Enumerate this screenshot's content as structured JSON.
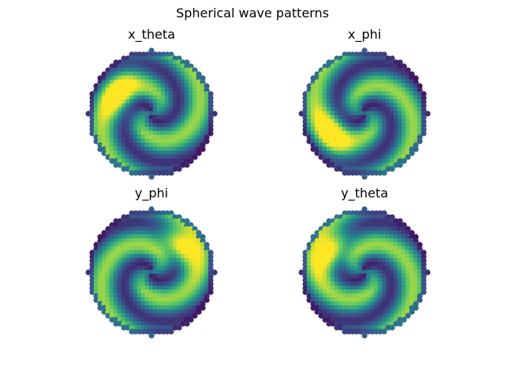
{
  "figure": {
    "suptitle": "Spherical wave patterns"
  },
  "chart_data": [
    {
      "type": "scatter",
      "title": "x_theta",
      "colormap": "viridis",
      "axes": "off",
      "grid": false,
      "bright_lobe": "upper-left",
      "colors": [
        "#440154",
        "#3b528b",
        "#21918c",
        "#5ec962",
        "#fde725"
      ]
    },
    {
      "type": "scatter",
      "title": "x_phi",
      "colormap": "viridis",
      "axes": "off",
      "grid": false,
      "bright_lobe": "lower-left",
      "colors": [
        "#440154",
        "#3b528b",
        "#21918c",
        "#5ec962",
        "#fde725"
      ]
    },
    {
      "type": "scatter",
      "title": "y_phi",
      "colormap": "viridis",
      "axes": "off",
      "grid": false,
      "bright_lobe": "upper-right",
      "colors": [
        "#440154",
        "#3b528b",
        "#21918c",
        "#5ec962",
        "#fde725"
      ]
    },
    {
      "type": "scatter",
      "title": "y_theta",
      "colormap": "viridis",
      "axes": "off",
      "grid": false,
      "bright_lobe": "upper-left",
      "colors": [
        "#440154",
        "#3b528b",
        "#21918c",
        "#5ec962",
        "#fde725"
      ]
    }
  ]
}
